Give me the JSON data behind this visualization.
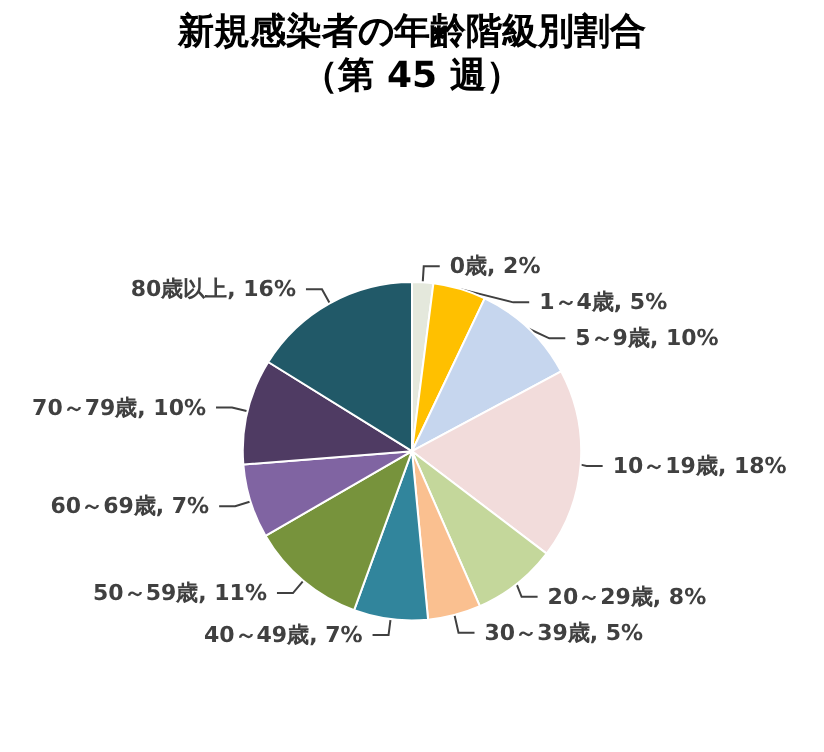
{
  "chart_data": {
    "type": "pie",
    "title": "新規感染者の年齢階級別割合",
    "subtitle": "（第 45 週）",
    "categories": [
      "0歳",
      "1～4歳",
      "5～9歳",
      "10～19歳",
      "20～29歳",
      "30～39歳",
      "40～49歳",
      "50～59歳",
      "60～69歳",
      "70～79歳",
      "80歳以上"
    ],
    "values": [
      2,
      5,
      10,
      18,
      8,
      5,
      7,
      11,
      7,
      10,
      16
    ],
    "value_labels": [
      "2%",
      "5%",
      "10%",
      "18%",
      "8%",
      "5%",
      "7%",
      "11%",
      "7%",
      "10%",
      "16%"
    ],
    "colors": [
      "#e4e8dc",
      "#ffc000",
      "#c6d6ee",
      "#f2dcdb",
      "#c4d79b",
      "#fac090",
      "#31859c",
      "#77933c",
      "#8064a2",
      "#4f3b63",
      "#215968"
    ],
    "legend": false
  }
}
